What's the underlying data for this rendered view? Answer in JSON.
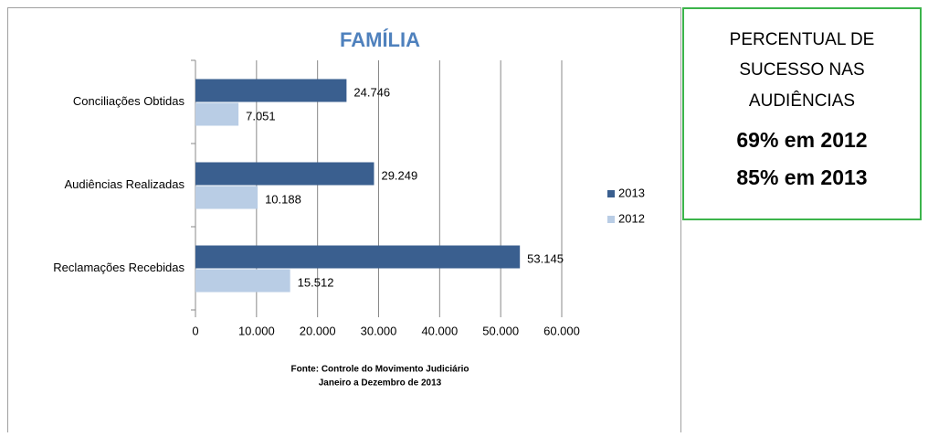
{
  "chart_data": {
    "type": "hbar",
    "title": "FAMÍLIA",
    "categories": [
      "Conciliações Obtidas",
      "Audiências Realizadas",
      "Reclamações Recebidas"
    ],
    "series": [
      {
        "name": "2013",
        "color": "#3a5f8f",
        "values": [
          24746,
          29249,
          53145
        ],
        "value_labels": [
          "24.746",
          "29.249",
          "53.145"
        ]
      },
      {
        "name": "2012",
        "color": "#b9cde5",
        "values": [
          7051,
          10188,
          15512
        ],
        "value_labels": [
          "7.051",
          "10.188",
          "15.512"
        ]
      }
    ],
    "xlim": [
      0,
      60000
    ],
    "xticks": [
      0,
      {
        "value": 10000,
        "label": "10.000"
      },
      {
        "value": 20000,
        "label": "20.000"
      },
      {
        "value": 30000,
        "label": "30.000"
      },
      {
        "value": 40000,
        "label": "40.000"
      },
      {
        "value": 50000,
        "label": "50.000"
      },
      {
        "value": 60000,
        "label": "60.000"
      }
    ],
    "grid": true,
    "legend": "right",
    "notes": [
      "Fonte: Controle do Movimento Judiciário",
      "Janeiro a Dezembro de 2013"
    ]
  },
  "text_box": {
    "lines": [
      "PERCENTUAL DE",
      "SUCESSO NAS",
      "AUDIÊNCIAS"
    ],
    "highlights": [
      "69% em 2012",
      "85% em 2013"
    ]
  }
}
